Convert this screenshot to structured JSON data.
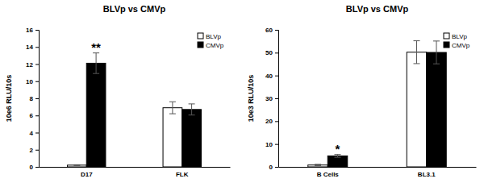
{
  "chart_data": [
    {
      "type": "bar",
      "title": "BLVp vs CMVp",
      "y_label": "10e6 RLU/10s",
      "categories": [
        "D17",
        "FLK"
      ],
      "series": [
        {
          "name": "BLVp",
          "color": "#ffffff",
          "values": [
            0.2,
            6.9
          ],
          "errors": [
            0.05,
            0.7
          ]
        },
        {
          "name": "CMVp",
          "color": "#000000",
          "values": [
            12.1,
            6.7
          ],
          "errors": [
            1.2,
            0.65
          ]
        }
      ],
      "ylim": [
        0,
        16
      ],
      "yticks": [
        0,
        2,
        4,
        6,
        8,
        10,
        12,
        14,
        16
      ],
      "legend": "upper right",
      "annotations": [
        {
          "text": "**",
          "category": "D17",
          "series": "CMVp"
        }
      ]
    },
    {
      "type": "bar",
      "title": "BLVp vs CMVp",
      "y_label": "10e3 RLU/10s",
      "categories": [
        "B Cells",
        "BL3.1"
      ],
      "series": [
        {
          "name": "BLVp",
          "color": "#ffffff",
          "values": [
            0.8,
            50.2
          ],
          "errors": [
            0.3,
            5.0
          ]
        },
        {
          "name": "CMVp",
          "color": "#000000",
          "values": [
            4.8,
            50.1
          ],
          "errors": [
            0.6,
            5.0
          ]
        }
      ],
      "ylim": [
        0,
        60
      ],
      "yticks": [
        0,
        10,
        20,
        30,
        40,
        50,
        60
      ],
      "legend": "upper right",
      "annotations": [
        {
          "text": "*",
          "category": "B Cells",
          "series": "CMVp"
        }
      ]
    }
  ]
}
